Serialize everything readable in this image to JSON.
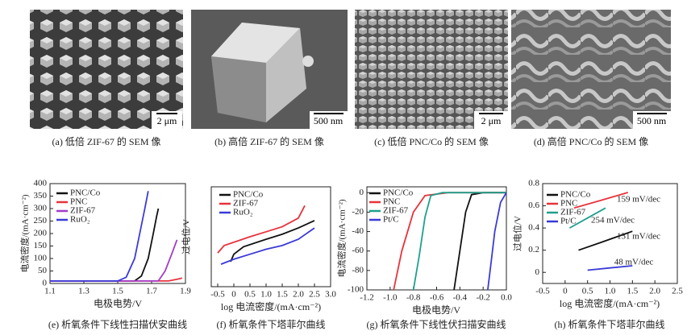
{
  "images": [
    {
      "caption": "(a) 低倍 ZIF-67 的 SEM 像",
      "scale_bar": "2 μm"
    },
    {
      "caption": "(b) 高倍 ZIF-67 的 SEM 像",
      "scale_bar": "500 nm"
    },
    {
      "caption": "(c) 低倍 PNC/Co 的 SEM 像",
      "scale_bar": "2 μm"
    },
    {
      "caption": "(d) 高倍 PNC/Co 的 SEM 像",
      "scale_bar": "500 nm"
    }
  ],
  "chart_data": [
    {
      "type": "line",
      "caption": "(e) 析氧条件下线性扫描伏安曲线",
      "xlabel": "电极电势/V",
      "ylabel": "电流密度/(mA·cm⁻²)",
      "xlim": [
        1.1,
        1.9
      ],
      "xticks": [
        1.1,
        1.3,
        1.5,
        1.7,
        1.9
      ],
      "ylim": [
        0,
        400
      ],
      "yticks": [
        0,
        50,
        100,
        150,
        200,
        250,
        300,
        350,
        400
      ],
      "series": [
        {
          "name": "PNC/Co",
          "color": "#111111",
          "x": [
            1.1,
            1.6,
            1.64,
            1.68,
            1.71,
            1.73,
            1.74
          ],
          "values": [
            10,
            10,
            30,
            100,
            200,
            270,
            300
          ]
        },
        {
          "name": "PNC",
          "color": "#e8323c",
          "x": [
            1.1,
            1.8,
            1.86,
            1.88
          ],
          "values": [
            10,
            10,
            18,
            22
          ]
        },
        {
          "name": "ZIF-67",
          "color": "#a33cc8",
          "x": [
            1.1,
            1.74,
            1.78,
            1.82,
            1.85
          ],
          "values": [
            10,
            10,
            50,
            120,
            175
          ]
        },
        {
          "name": "RuO₂",
          "color": "#3a3ad8",
          "x": [
            1.1,
            1.5,
            1.55,
            1.6,
            1.63,
            1.66,
            1.68
          ],
          "values": [
            10,
            10,
            25,
            100,
            200,
            300,
            370
          ]
        }
      ]
    },
    {
      "type": "line",
      "caption": "(f) 析氧条件下塔菲尔曲线",
      "xlabel": "log 电流密度/(mA·cm⁻²)",
      "ylabel": "过电位/V",
      "xlim": [
        -0.7,
        3.0
      ],
      "xticks": [
        -0.5,
        0,
        0.5,
        {
          "value": 1.0,
          "label": "1.0"
        },
        1.5,
        {
          "value": 2.0,
          "label": "2.0"
        },
        2.5,
        {
          "value": 3.0,
          "label": "3.0"
        }
      ],
      "ylim": [
        0,
        0.8
      ],
      "series": [
        {
          "name": "PNC/Co",
          "color": "#111111",
          "x": [
            -0.1,
            0,
            0.3,
            1,
            1.5,
            2,
            2.5
          ],
          "values": [
            0.2,
            0.26,
            0.32,
            0.38,
            0.42,
            0.47,
            0.53
          ]
        },
        {
          "name": "ZIF-67",
          "color": "#e8323c",
          "x": [
            -0.5,
            -0.3,
            0.5,
            1,
            1.5,
            2,
            2.2
          ],
          "values": [
            0.27,
            0.33,
            0.4,
            0.44,
            0.48,
            0.55,
            0.65
          ]
        },
        {
          "name": "RuO₂",
          "color": "#3a3ad8",
          "x": [
            -0.4,
            0,
            0.5,
            1,
            1.5,
            2,
            2.5
          ],
          "values": [
            0.18,
            0.22,
            0.26,
            0.3,
            0.33,
            0.38,
            0.47
          ]
        }
      ]
    },
    {
      "type": "line",
      "caption": "(g) 析氧条件下线性伏扫描安曲线",
      "xlabel": "电极电势/V",
      "ylabel": "电流密度/(mA·cm⁻²)",
      "xlim": [
        -1.2,
        0
      ],
      "xticks": [
        -1.2,
        {
          "value": -1.0,
          "label": "-1.0"
        },
        -0.8,
        -0.6,
        -0.4,
        -0.2,
        {
          "value": 0,
          "label": "0.0"
        }
      ],
      "ylim": [
        -100,
        6
      ],
      "yticks": [
        0,
        -20,
        -40,
        -60,
        -80,
        -100
      ],
      "series": [
        {
          "name": "PNC/Co",
          "color": "#111111",
          "x": [
            0,
            -0.2,
            -0.3,
            -0.35,
            -0.4,
            -0.45
          ],
          "values": [
            0,
            0,
            -2,
            -20,
            -60,
            -100
          ]
        },
        {
          "name": "PNC",
          "color": "#e8323c",
          "x": [
            0,
            -0.5,
            -0.7,
            -0.8,
            -0.9,
            -0.97
          ],
          "values": [
            0,
            0,
            -3,
            -20,
            -60,
            -100
          ]
        },
        {
          "name": "ZIF-67",
          "color": "#1fa08c",
          "x": [
            0,
            -0.55,
            -0.65,
            -0.7,
            -0.75,
            -0.8
          ],
          "values": [
            0,
            0,
            -3,
            -25,
            -65,
            -100
          ]
        },
        {
          "name": "Pt/C",
          "color": "#3a3ad8",
          "x": [
            0,
            -0.05,
            -0.1,
            -0.13,
            -0.16
          ],
          "values": [
            0,
            -10,
            -40,
            -70,
            -100
          ]
        }
      ]
    },
    {
      "type": "line",
      "caption": "(h) 析氧条件下塔菲尔曲线",
      "xlabel": "log 电流密度/(mA·cm⁻²)",
      "ylabel": "过电位/V",
      "xlim": [
        -0.5,
        2.5
      ],
      "xticks": [
        -0.5,
        0,
        0.5,
        {
          "value": 1.0,
          "label": "1.0"
        },
        1.5,
        {
          "value": 2.0,
          "label": "2.0"
        },
        2.5
      ],
      "ylim": [
        -0.1,
        0.8
      ],
      "yticks": [
        0,
        0.2,
        0.4,
        0.6,
        0.8
      ],
      "annotations": [
        "159 mV/dec",
        "254 mV/dec",
        "131 mV/dec",
        "48 mV/dec"
      ],
      "series": [
        {
          "name": "PNC/Co",
          "color": "#111111",
          "x": [
            0.3,
            0.8,
            1.5
          ],
          "values": [
            0.2,
            0.27,
            0.37
          ]
        },
        {
          "name": "PNC",
          "color": "#e8323c",
          "x": [
            0.2,
            0.8,
            1.4
          ],
          "values": [
            0.58,
            0.65,
            0.72
          ]
        },
        {
          "name": "ZIF-67",
          "color": "#1fa08c",
          "x": [
            0.1,
            0.5,
            0.9
          ],
          "values": [
            0.4,
            0.49,
            0.58
          ]
        },
        {
          "name": "Pt/C",
          "color": "#3a3ad8",
          "x": [
            0.5,
            1.0,
            1.5
          ],
          "values": [
            0.02,
            0.04,
            0.06
          ]
        }
      ]
    }
  ]
}
